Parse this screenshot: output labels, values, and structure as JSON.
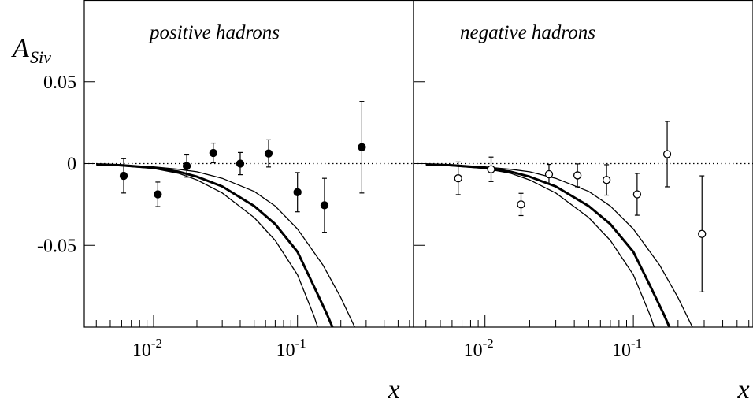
{
  "y_axis": {
    "label_main": "A",
    "label_sub": "Siv",
    "ticks": [
      {
        "value": 0.05,
        "label": "0.05"
      },
      {
        "value": 0,
        "label": "0"
      },
      {
        "value": -0.05,
        "label": "-0.05"
      }
    ]
  },
  "x_axis": {
    "label": "x",
    "ticks": [
      {
        "value": 0.01,
        "base": "10",
        "exp": "-2"
      },
      {
        "value": 0.1,
        "base": "10",
        "exp": "-1"
      }
    ]
  },
  "chart_data": [
    {
      "type": "scatter",
      "title": "positive hadrons",
      "marker": "filled-circle",
      "xlabel": "x",
      "ylabel": "A_Siv",
      "xscale": "log",
      "xlim": [
        0.0033,
        0.64
      ],
      "ylim": [
        -0.1,
        0.1
      ],
      "reference_line": {
        "y": 0,
        "style": "dotted"
      },
      "points": [
        {
          "x": 0.0062,
          "y": -0.0075,
          "err_low": 0.0105,
          "err_high": 0.0105
        },
        {
          "x": 0.0107,
          "y": -0.0188,
          "err_low": 0.0075,
          "err_high": 0.0075
        },
        {
          "x": 0.017,
          "y": -0.0015,
          "err_low": 0.0068,
          "err_high": 0.0068
        },
        {
          "x": 0.026,
          "y": 0.0065,
          "err_low": 0.006,
          "err_high": 0.006
        },
        {
          "x": 0.04,
          "y": 0.0,
          "err_low": 0.0068,
          "err_high": 0.0068
        },
        {
          "x": 0.063,
          "y": 0.0062,
          "err_low": 0.0083,
          "err_high": 0.0083
        },
        {
          "x": 0.1,
          "y": -0.0175,
          "err_low": 0.012,
          "err_high": 0.012
        },
        {
          "x": 0.154,
          "y": -0.0255,
          "err_low": 0.0165,
          "err_high": 0.0165
        },
        {
          "x": 0.28,
          "y": 0.01,
          "err_low": 0.028,
          "err_high": 0.028
        }
      ],
      "curves": [
        {
          "role": "central",
          "points": [
            [
              0.004,
              -0.0005
            ],
            [
              0.006,
              -0.001
            ],
            [
              0.01,
              -0.0025
            ],
            [
              0.015,
              -0.005
            ],
            [
              0.02,
              -0.008
            ],
            [
              0.03,
              -0.014
            ],
            [
              0.05,
              -0.026
            ],
            [
              0.07,
              -0.037
            ],
            [
              0.1,
              -0.054
            ],
            [
              0.13,
              -0.075
            ],
            [
              0.16,
              -0.092
            ],
            [
              0.175,
              -0.1
            ]
          ]
        },
        {
          "role": "band-upper",
          "points": [
            [
              0.004,
              -0.0005
            ],
            [
              0.006,
              -0.001
            ],
            [
              0.01,
              -0.002
            ],
            [
              0.015,
              -0.0035
            ],
            [
              0.02,
              -0.005
            ],
            [
              0.03,
              -0.009
            ],
            [
              0.05,
              -0.017
            ],
            [
              0.07,
              -0.026
            ],
            [
              0.1,
              -0.04
            ],
            [
              0.15,
              -0.062
            ],
            [
              0.2,
              -0.082
            ],
            [
              0.25,
              -0.1
            ]
          ]
        },
        {
          "role": "band-lower",
          "points": [
            [
              0.004,
              -0.0005
            ],
            [
              0.006,
              -0.0015
            ],
            [
              0.01,
              -0.003
            ],
            [
              0.015,
              -0.006
            ],
            [
              0.02,
              -0.01
            ],
            [
              0.03,
              -0.018
            ],
            [
              0.05,
              -0.033
            ],
            [
              0.07,
              -0.047
            ],
            [
              0.1,
              -0.068
            ],
            [
              0.13,
              -0.093
            ],
            [
              0.138,
              -0.1
            ]
          ]
        }
      ]
    },
    {
      "type": "scatter",
      "title": "negative hadrons",
      "marker": "open-circle",
      "xlabel": "x",
      "ylabel": "A_Siv",
      "xscale": "log",
      "xlim": [
        0.0033,
        0.64
      ],
      "ylim": [
        -0.1,
        0.1
      ],
      "reference_line": {
        "y": 0,
        "style": "dotted"
      },
      "points": [
        {
          "x": 0.0066,
          "y": -0.009,
          "err_low": 0.01,
          "err_high": 0.01
        },
        {
          "x": 0.011,
          "y": -0.0035,
          "err_low": 0.0075,
          "err_high": 0.0075
        },
        {
          "x": 0.0175,
          "y": -0.025,
          "err_low": 0.0068,
          "err_high": 0.0068
        },
        {
          "x": 0.027,
          "y": -0.0065,
          "err_low": 0.006,
          "err_high": 0.006
        },
        {
          "x": 0.042,
          "y": -0.0072,
          "err_low": 0.007,
          "err_high": 0.007
        },
        {
          "x": 0.066,
          "y": -0.01,
          "err_low": 0.0093,
          "err_high": 0.0093
        },
        {
          "x": 0.106,
          "y": -0.0188,
          "err_low": 0.0128,
          "err_high": 0.0128
        },
        {
          "x": 0.169,
          "y": 0.0058,
          "err_low": 0.02,
          "err_high": 0.02
        },
        {
          "x": 0.29,
          "y": -0.043,
          "err_low": 0.0355,
          "err_high": 0.0355
        }
      ],
      "curves": [
        {
          "role": "central",
          "points": [
            [
              0.004,
              -0.0005
            ],
            [
              0.006,
              -0.001
            ],
            [
              0.01,
              -0.0025
            ],
            [
              0.015,
              -0.005
            ],
            [
              0.02,
              -0.008
            ],
            [
              0.03,
              -0.014
            ],
            [
              0.05,
              -0.026
            ],
            [
              0.07,
              -0.037
            ],
            [
              0.1,
              -0.054
            ],
            [
              0.13,
              -0.075
            ],
            [
              0.16,
              -0.092
            ],
            [
              0.175,
              -0.1
            ]
          ]
        },
        {
          "role": "band-upper",
          "points": [
            [
              0.004,
              -0.0005
            ],
            [
              0.006,
              -0.001
            ],
            [
              0.01,
              -0.002
            ],
            [
              0.015,
              -0.0035
            ],
            [
              0.02,
              -0.005
            ],
            [
              0.03,
              -0.009
            ],
            [
              0.05,
              -0.017
            ],
            [
              0.07,
              -0.026
            ],
            [
              0.1,
              -0.04
            ],
            [
              0.15,
              -0.062
            ],
            [
              0.2,
              -0.082
            ],
            [
              0.25,
              -0.1
            ]
          ]
        },
        {
          "role": "band-lower",
          "points": [
            [
              0.004,
              -0.0005
            ],
            [
              0.006,
              -0.0015
            ],
            [
              0.01,
              -0.003
            ],
            [
              0.015,
              -0.006
            ],
            [
              0.02,
              -0.01
            ],
            [
              0.03,
              -0.018
            ],
            [
              0.05,
              -0.033
            ],
            [
              0.07,
              -0.047
            ],
            [
              0.1,
              -0.068
            ],
            [
              0.13,
              -0.093
            ],
            [
              0.138,
              -0.1
            ]
          ]
        }
      ]
    }
  ]
}
